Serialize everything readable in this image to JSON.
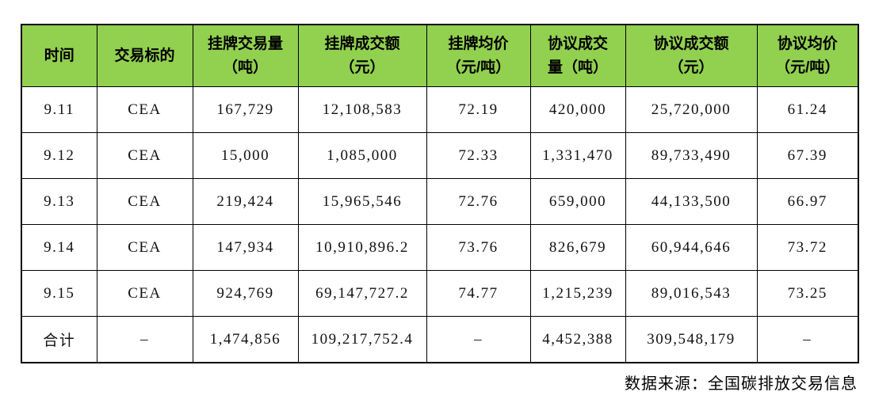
{
  "table": {
    "header_bg_color": "#92D050",
    "border_color": "#000000",
    "columns": [
      {
        "label": "时间"
      },
      {
        "label": "交易标的"
      },
      {
        "label": "挂牌交易量\n（吨）"
      },
      {
        "label": "挂牌成交额\n（元）"
      },
      {
        "label": "挂牌均价\n（元/吨）"
      },
      {
        "label": "协议成交\n量（吨）"
      },
      {
        "label": "协议成交额\n（元）"
      },
      {
        "label": "协议均价\n（元/吨）"
      }
    ],
    "rows": [
      [
        "9.11",
        "CEA",
        "167,729",
        "12,108,583",
        "72.19",
        "420,000",
        "25,720,000",
        "61.24"
      ],
      [
        "9.12",
        "CEA",
        "15,000",
        "1,085,000",
        "72.33",
        "1,331,470",
        "89,733,490",
        "67.39"
      ],
      [
        "9.13",
        "CEA",
        "219,424",
        "15,965,546",
        "72.76",
        "659,000",
        "44,133,500",
        "66.97"
      ],
      [
        "9.14",
        "CEA",
        "147,934",
        "10,910,896.2",
        "73.76",
        "826,679",
        "60,944,646",
        "73.72"
      ],
      [
        "9.15",
        "CEA",
        "924,769",
        "69,147,727.2",
        "74.77",
        "1,215,239",
        "89,016,543",
        "73.25"
      ]
    ],
    "total_row": [
      "合计",
      "–",
      "1,474,856",
      "109,217,752.4",
      "–",
      "4,452,388",
      "309,548,179",
      "–"
    ]
  },
  "footer": {
    "source_text": "数据来源：全国碳排放交易信息"
  }
}
